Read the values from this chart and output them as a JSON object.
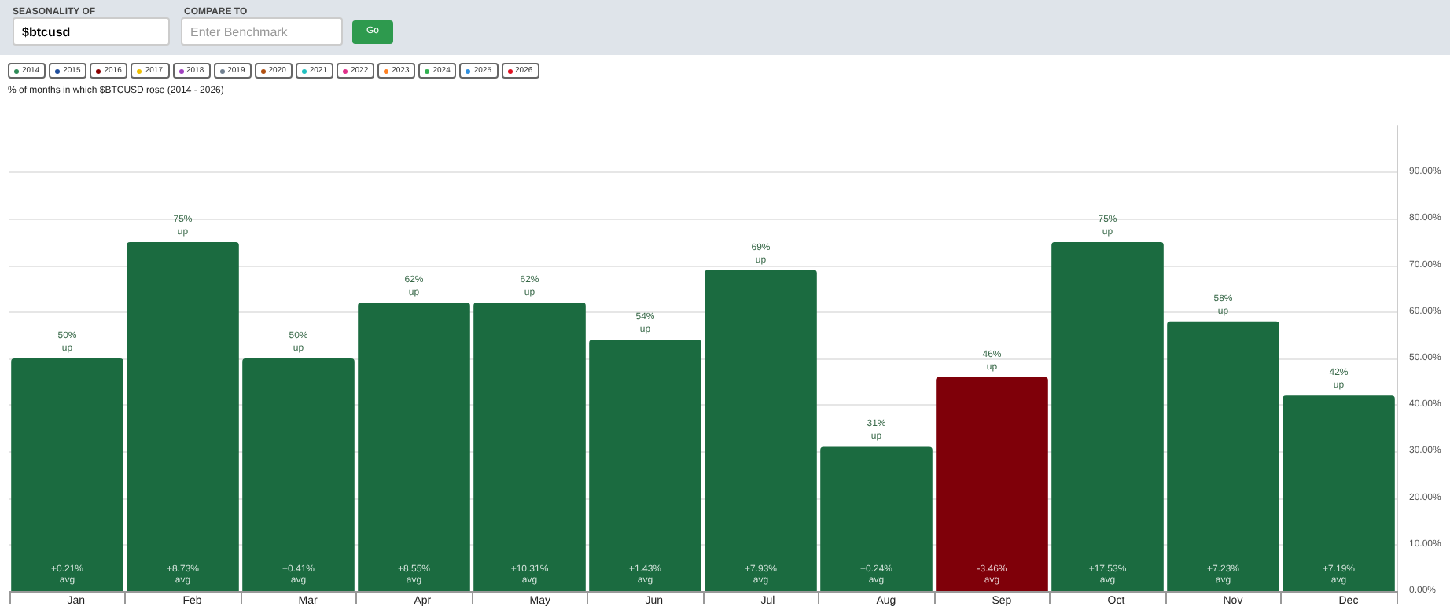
{
  "chart_data": {
    "type": "bar",
    "title": "% of months in which $BTCUSD rose (2014 - 2026)",
    "categories": [
      "Jan",
      "Feb",
      "Mar",
      "Apr",
      "May",
      "Jun",
      "Jul",
      "Aug",
      "Sep",
      "Oct",
      "Nov",
      "Dec"
    ],
    "values": [
      50,
      75,
      50,
      62,
      62,
      54,
      69,
      31,
      46,
      75,
      58,
      42
    ],
    "colors": [
      "#1b6b40",
      "#1b6b40",
      "#1b6b40",
      "#1b6b40",
      "#1b6b40",
      "#1b6b40",
      "#1b6b40",
      "#1b6b40",
      "#7f0009",
      "#1b6b40",
      "#1b6b40",
      "#1b6b40"
    ],
    "value_labels": [
      "50%\nup",
      "75%\nup",
      "50%\nup",
      "62%\nup",
      "62%\nup",
      "54%\nup",
      "69%\nup",
      "31%\nup",
      "46%\nup",
      "75%\nup",
      "58%\nup",
      "42%\nup"
    ],
    "ylim": [
      0,
      100
    ],
    "yticks": [
      {
        "value": 0,
        "label": "0.00%"
      },
      {
        "value": 10,
        "label": "10.00%"
      },
      {
        "value": 20,
        "label": "20.00%"
      },
      {
        "value": 30,
        "label": "30.00%"
      },
      {
        "value": 40,
        "label": "40.00%"
      },
      {
        "value": 50,
        "label": "50.00%"
      },
      {
        "value": 60,
        "label": "60.00%"
      },
      {
        "value": 70,
        "label": "70.00%"
      },
      {
        "value": 80,
        "label": "80.00%"
      },
      {
        "value": 90,
        "label": "90.00%"
      }
    ],
    "grid": "y",
    "annotations": [
      {
        "text": "+0.21%\navg",
        "x": "Jan",
        "y": 0
      },
      {
        "text": "+8.73%\navg",
        "x": "Feb",
        "y": 0
      },
      {
        "text": "+0.41%\navg",
        "x": "Mar",
        "y": 0
      },
      {
        "text": "+8.55%\navg",
        "x": "Apr",
        "y": 0
      },
      {
        "text": "+10.31%\navg",
        "x": "May",
        "y": 0
      },
      {
        "text": "+1.43%\navg",
        "x": "Jun",
        "y": 0
      },
      {
        "text": "+7.93%\navg",
        "x": "Jul",
        "y": 0
      },
      {
        "text": "+0.24%\navg",
        "x": "Aug",
        "y": 0
      },
      {
        "text": "-3.46%\navg",
        "x": "Sep",
        "y": 0
      },
      {
        "text": "+17.53%\navg",
        "x": "Oct",
        "y": 0
      },
      {
        "text": "+7.23%\navg",
        "x": "Nov",
        "y": 0
      },
      {
        "text": "+7.19%\navg",
        "x": "Dec",
        "y": 0
      },
      "SEASONALITY OF",
      "$btcusd",
      "COMPARE TO",
      "Enter Benchmark",
      "Go",
      "2014",
      "2015",
      "2016",
      "2017",
      "2018",
      "2019",
      "2020",
      "2021",
      "2022",
      "2023",
      "2024",
      "2025",
      "2026"
    ]
  }
}
